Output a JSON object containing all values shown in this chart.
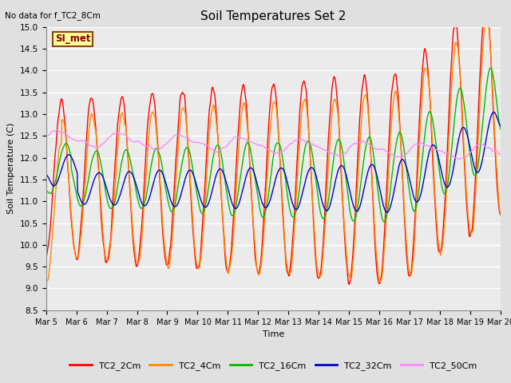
{
  "title": "Soil Temperatures Set 2",
  "top_left_note": "No data for f_TC2_8Cm",
  "xlabel": "Time",
  "ylabel": "Soil Temperature (C)",
  "ylim": [
    8.5,
    15.0
  ],
  "yticks": [
    8.5,
    9.0,
    9.5,
    10.0,
    10.5,
    11.0,
    11.5,
    12.0,
    12.5,
    13.0,
    13.5,
    14.0,
    14.5,
    15.0
  ],
  "legend_box_text": "SI_met",
  "legend_box_color": "#FFFF99",
  "legend_box_border": "#8B4513",
  "fig_bg_color": "#E0E0E0",
  "plot_bg_color": "#EBEBEB",
  "grid_color": "#FFFFFF",
  "line_colors": {
    "TC2_2Cm": "#FF0000",
    "TC2_4Cm": "#FF8C00",
    "TC2_16Cm": "#00BB00",
    "TC2_32Cm": "#0000CC",
    "TC2_50Cm": "#FF88FF"
  },
  "n_points": 1440,
  "x_start": 5.0,
  "x_end": 20.0,
  "xtick_positions": [
    5,
    6,
    7,
    8,
    9,
    10,
    11,
    12,
    13,
    14,
    15,
    16,
    17,
    18,
    19,
    20
  ],
  "xtick_labels": [
    "Mar 5",
    "Mar 6",
    "Mar 7",
    "Mar 8",
    "Mar 9",
    "Mar 10",
    "Mar 11",
    "Mar 12",
    "Mar 13",
    "Mar 14",
    "Mar 15",
    "Mar 16",
    "Mar 17",
    "Mar 18",
    "Mar 19",
    "Mar 20"
  ]
}
